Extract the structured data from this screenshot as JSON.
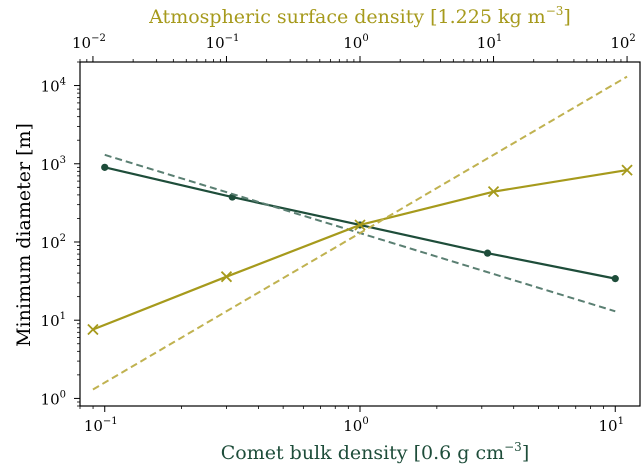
{
  "chart_data": {
    "type": "line",
    "xlabel_bottom": {
      "text": "Comet bulk density [0.6 g cm",
      "sup": "−3",
      "close": "]"
    },
    "xlabel_top": {
      "text": "Atmospheric surface density [1.225 kg m",
      "sup": "−3",
      "close": "]"
    },
    "ylabel": "Minimum diameter [m]",
    "x_scale": "log",
    "y_scale": "log",
    "bottom_x_range": [
      0.08,
      12.5
    ],
    "top_x_range": [
      0.008,
      125
    ],
    "y_range": [
      0.8,
      20000
    ],
    "grid": false,
    "bottom_ticks": [
      {
        "base": "10",
        "exp": "−1",
        "value": 0.1
      },
      {
        "base": "10",
        "exp": "0",
        "value": 1
      },
      {
        "base": "10",
        "exp": "1",
        "value": 10
      }
    ],
    "top_ticks": [
      {
        "base": "10",
        "exp": "−2",
        "value": 0.01
      },
      {
        "base": "10",
        "exp": "−1",
        "value": 0.1
      },
      {
        "base": "10",
        "exp": "0",
        "value": 1
      },
      {
        "base": "10",
        "exp": "1",
        "value": 10
      },
      {
        "base": "10",
        "exp": "2",
        "value": 100
      }
    ],
    "y_ticks": [
      {
        "base": "10",
        "exp": "0",
        "value": 1
      },
      {
        "base": "10",
        "exp": "1",
        "value": 10
      },
      {
        "base": "10",
        "exp": "2",
        "value": 100
      },
      {
        "base": "10",
        "exp": "3",
        "value": 1000
      },
      {
        "base": "10",
        "exp": "4",
        "value": 10000
      }
    ],
    "colors": {
      "comet": "#1e4d3a",
      "comet_fit": "#5a7f72",
      "atmosphere": "#a69a1c",
      "atmosphere_fit": "#c0b250",
      "top_axis": "#a69a1c",
      "bottom_label": "#1e4d3a"
    },
    "series": [
      {
        "axis": "bottom",
        "style": "solid",
        "marker": "dot",
        "color_key": "comet",
        "x": [
          0.1,
          0.316,
          1,
          3.16,
          10
        ],
        "y": [
          900,
          375,
          165,
          72,
          34
        ]
      },
      {
        "axis": "bottom",
        "style": "dashed",
        "marker": "none",
        "color_key": "comet_fit",
        "x": [
          0.1,
          10
        ],
        "y": [
          1300,
          13
        ]
      },
      {
        "axis": "top",
        "style": "solid",
        "marker": "x",
        "color_key": "atmosphere",
        "x": [
          0.01,
          0.1,
          1,
          10,
          100
        ],
        "y": [
          7.6,
          36,
          165,
          440,
          830
        ]
      },
      {
        "axis": "top",
        "style": "dashed",
        "marker": "none",
        "color_key": "atmosphere_fit",
        "x": [
          0.01,
          100
        ],
        "y": [
          1.3,
          13000
        ]
      }
    ]
  }
}
